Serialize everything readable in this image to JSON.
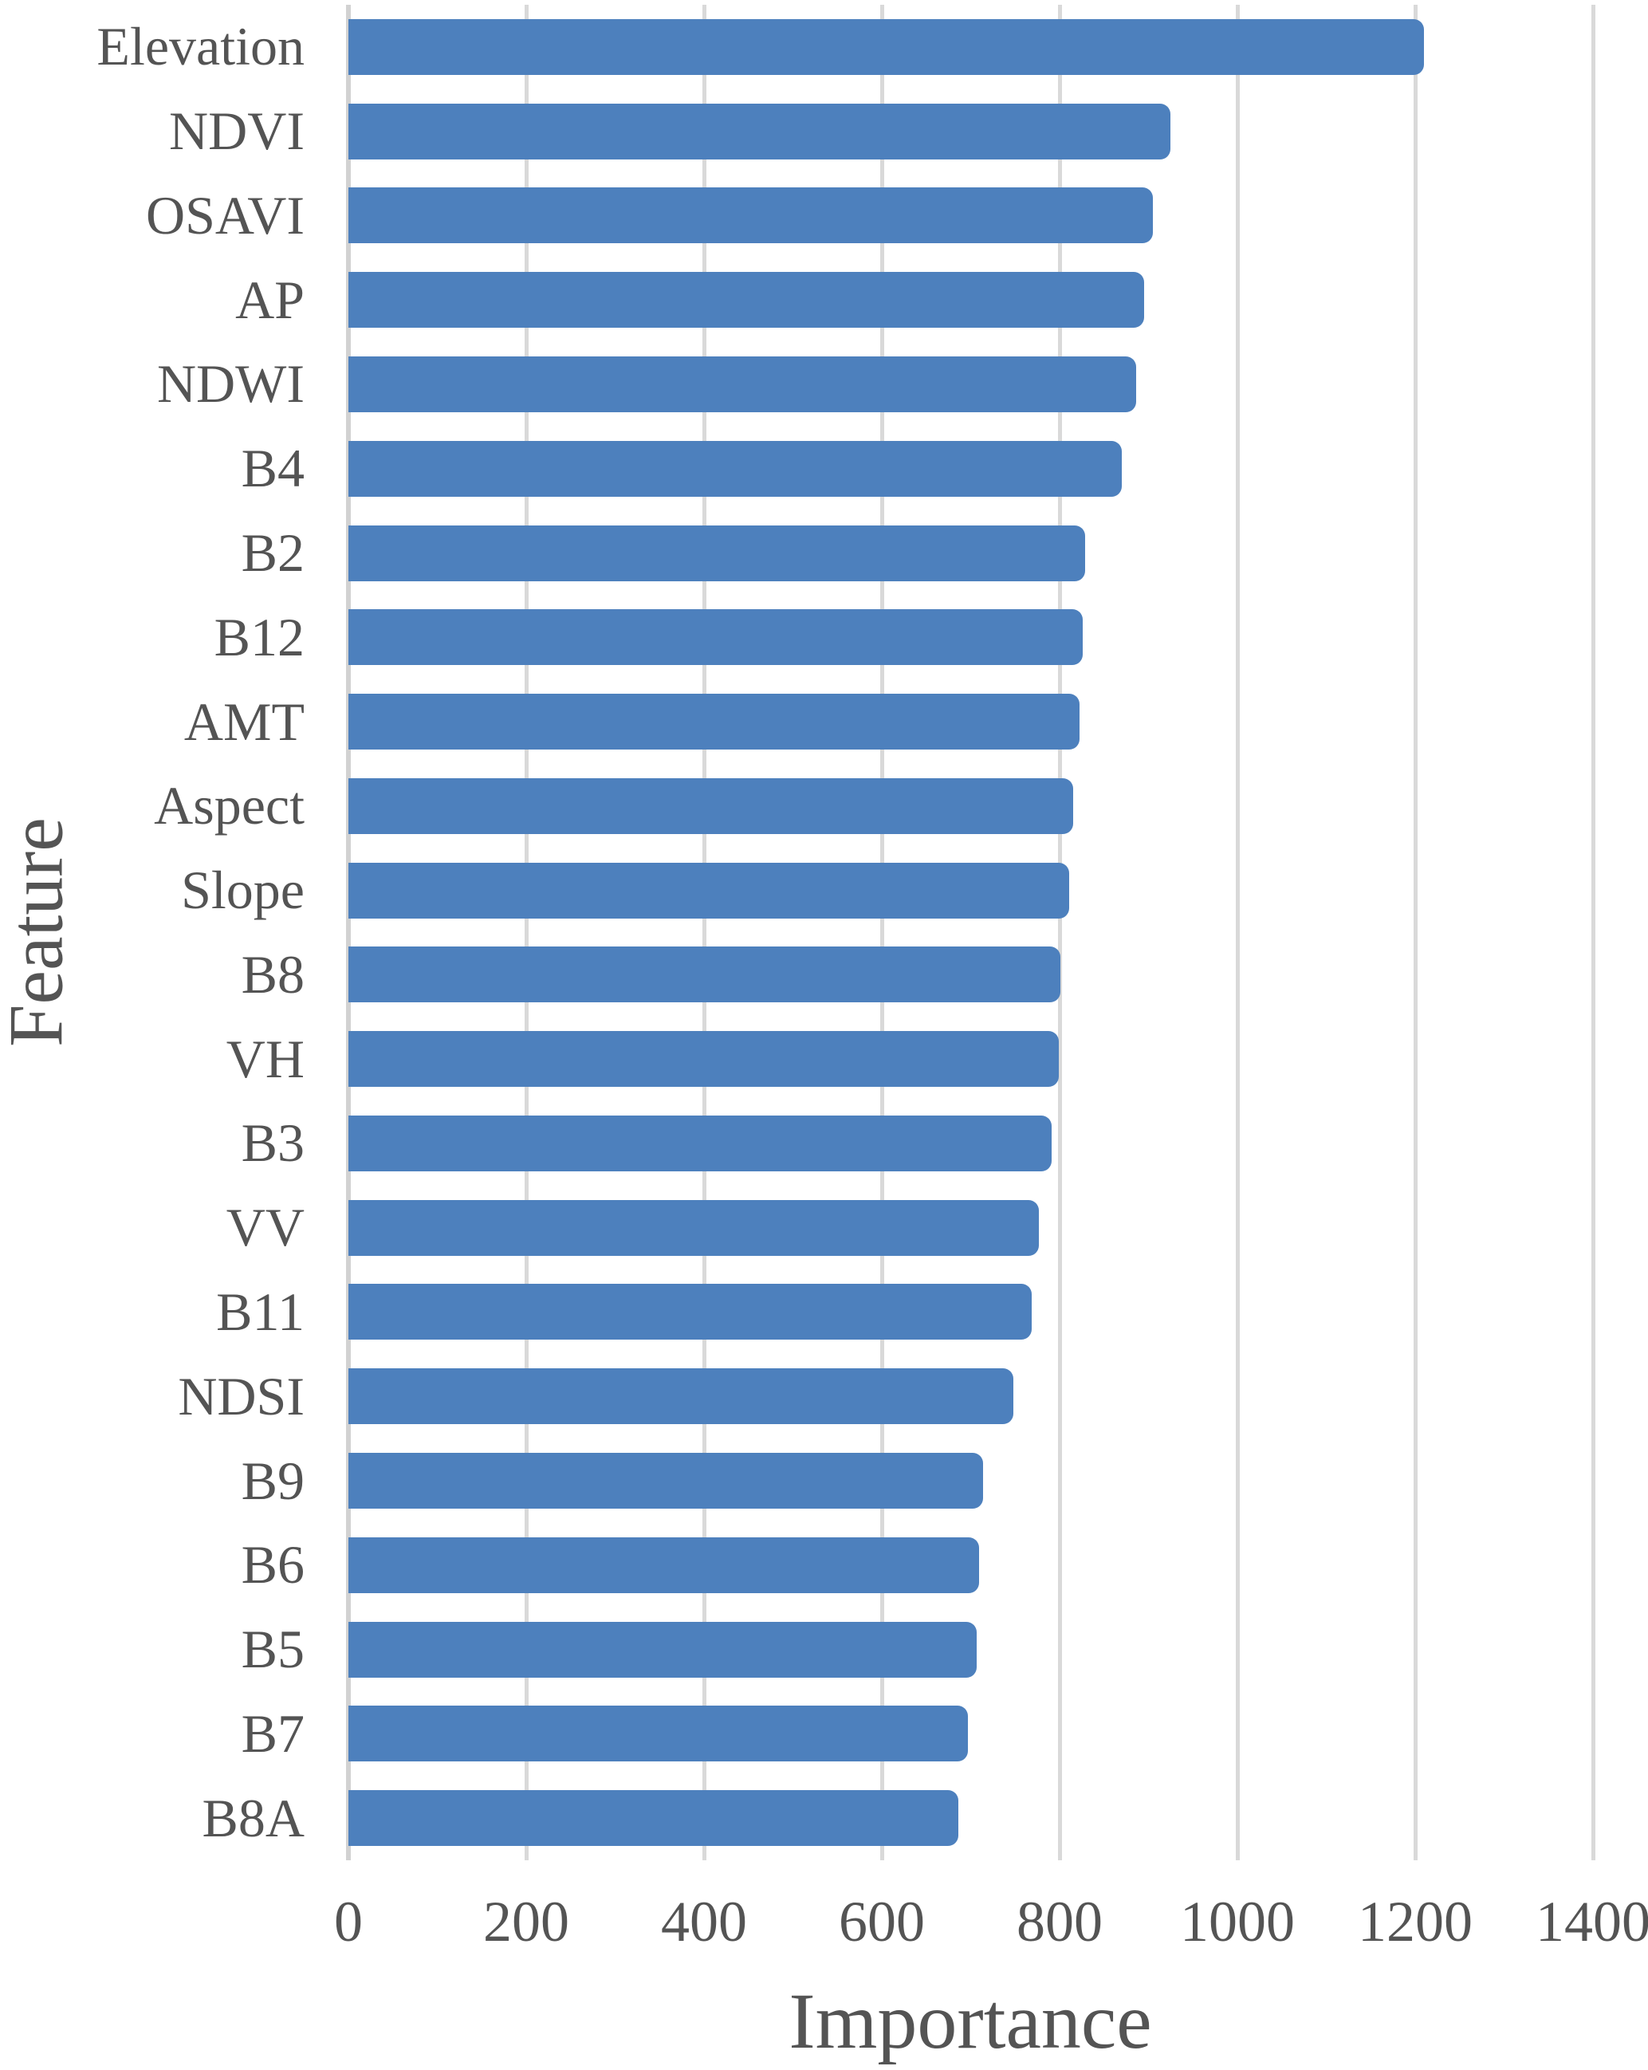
{
  "chart_data": {
    "type": "bar",
    "orientation": "horizontal",
    "title": "",
    "xlabel": "Importance",
    "ylabel": "Feature",
    "categories": [
      "Elevation",
      "NDVI",
      "OSAVI",
      "AP",
      "NDWI",
      "B4",
      "B2",
      "B12",
      "AMT",
      "Aspect",
      "Slope",
      "B8",
      "VH",
      "B3",
      "VV",
      "B11",
      "NDSI",
      "B9",
      "B6",
      "B5",
      "B7",
      "B8A"
    ],
    "values": [
      1210,
      925,
      905,
      895,
      886,
      870,
      829,
      826,
      822,
      815,
      811,
      801,
      799,
      791,
      777,
      769,
      748,
      714,
      709,
      707,
      697,
      686
    ],
    "xlim": [
      0,
      1400
    ],
    "xticks": [
      0,
      200,
      400,
      600,
      800,
      1000,
      1200,
      1400
    ],
    "grid": "vertical",
    "legend": "none",
    "bar_color": "#4d80bd",
    "gridline_color": "#d9d9d9",
    "axis_line_color": "#d2d2d2",
    "text_color": "#545454"
  }
}
